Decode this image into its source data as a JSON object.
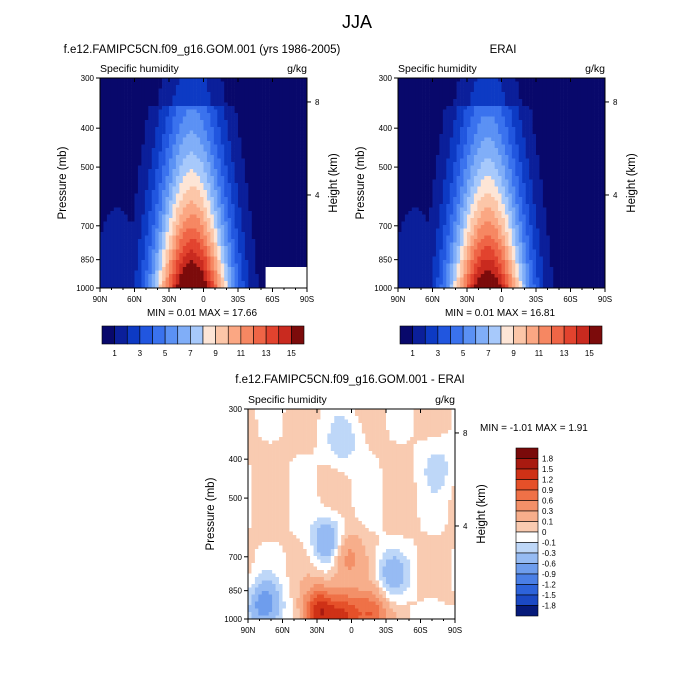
{
  "page_title": "JJA",
  "colors": {
    "blues": [
      "#08086b",
      "#0b1f9a",
      "#0d3ac4",
      "#2156df",
      "#3a72ee",
      "#5b91f4",
      "#80aef8",
      "#a7c9fb",
      "#cfe2fd"
    ],
    "reds": [
      "#fde5d6",
      "#fcc6a8",
      "#fba783",
      "#f68762",
      "#ef6546",
      "#e2432e",
      "#c92a1f",
      "#a61614",
      "#7c0b0b"
    ],
    "diff_neg": [
      "#e0eefd",
      "#bed7f8",
      "#96bbf3",
      "#6e9ded",
      "#4a7fe6",
      "#2d63da",
      "#1b49c4",
      "#0e2ea3",
      "#061a7a"
    ],
    "diff_pos": [
      "#fbe6d8",
      "#f9cbb1",
      "#f7ae8b",
      "#f39068",
      "#ef7147",
      "#e55029",
      "#cf3116",
      "#a81a10",
      "#7a0a0a"
    ],
    "missing": "#ffffff"
  },
  "chart_data": [
    {
      "id": "model",
      "type": "heatmap",
      "title": "f.e12.FAMIPC5CN.f09_g16.GOM.001 (yrs 1986-2005)",
      "left_label": "Specific humidity",
      "right_label": "g/kg",
      "xlabel": "",
      "ylabel": "Pressure (mb)",
      "ylabel_right": "Height (km)",
      "x_ticks": [
        "90N",
        "60N",
        "30N",
        "0",
        "30S",
        "60S",
        "90S"
      ],
      "x_tick_values": [
        90,
        60,
        30,
        0,
        -30,
        -60,
        -90
      ],
      "y_ticks": [
        "300",
        "400",
        "500",
        "700",
        "850",
        "1000"
      ],
      "y_tick_values": [
        300,
        400,
        500,
        700,
        850,
        1000
      ],
      "y_right_ticks": [
        "8",
        "4"
      ],
      "y_right_tick_values": [
        8,
        4
      ],
      "xlim": [
        90,
        -90
      ],
      "ylim": [
        1000,
        300
      ],
      "y_scale": "log",
      "min_label": "MIN =  0.01  MAX =  17.66",
      "min": 0.01,
      "max": 17.66,
      "surface_peak_lat": 10,
      "surface_peak_value": 17.66,
      "missing_region": {
        "lat": [
          -55,
          -90
        ],
        "pressure": [
          880,
          1000
        ]
      },
      "colorbar": {
        "levels": [
          1,
          2,
          3,
          4,
          5,
          6,
          7,
          8,
          9,
          10,
          11,
          12,
          13,
          14,
          15
        ],
        "labels": [
          "1",
          "3",
          "5",
          "7",
          "9",
          "11",
          "13",
          "15"
        ]
      }
    },
    {
      "id": "obs",
      "type": "heatmap",
      "title": "ERAI",
      "left_label": "Specific humidity",
      "right_label": "g/kg",
      "xlabel": "",
      "ylabel": "Pressure (mb)",
      "ylabel_right": "Height (km)",
      "x_ticks": [
        "90N",
        "60N",
        "30N",
        "0",
        "30S",
        "60S",
        "90S"
      ],
      "x_tick_values": [
        90,
        60,
        30,
        0,
        -30,
        -60,
        -90
      ],
      "y_ticks": [
        "300",
        "400",
        "500",
        "700",
        "850",
        "1000"
      ],
      "y_tick_values": [
        300,
        400,
        500,
        700,
        850,
        1000
      ],
      "y_right_ticks": [
        "8",
        "4"
      ],
      "y_right_tick_values": [
        8,
        4
      ],
      "xlim": [
        90,
        -90
      ],
      "ylim": [
        1000,
        300
      ],
      "y_scale": "log",
      "min_label": "MIN =  0.01  MAX =  16.81",
      "min": 0.01,
      "max": 16.81,
      "surface_peak_lat": 12,
      "surface_peak_value": 16.81,
      "colorbar": {
        "levels": [
          1,
          2,
          3,
          4,
          5,
          6,
          7,
          8,
          9,
          10,
          11,
          12,
          13,
          14,
          15
        ],
        "labels": [
          "1",
          "3",
          "5",
          "7",
          "9",
          "11",
          "13",
          "15"
        ]
      }
    },
    {
      "id": "diff",
      "type": "heatmap",
      "title": "f.e12.FAMIPC5CN.f09_g16.GOM.001 - ERAI",
      "left_label": "Specific humidity",
      "right_label": "g/kg",
      "xlabel": "",
      "ylabel": "Pressure (mb)",
      "ylabel_right": "Height (km)",
      "x_ticks": [
        "90N",
        "60N",
        "30N",
        "0",
        "30S",
        "60S",
        "90S"
      ],
      "x_tick_values": [
        90,
        60,
        30,
        0,
        -30,
        -60,
        -90
      ],
      "y_ticks": [
        "300",
        "400",
        "500",
        "700",
        "850",
        "1000"
      ],
      "y_tick_values": [
        300,
        400,
        500,
        700,
        850,
        1000
      ],
      "y_right_ticks": [
        "8",
        "4"
      ],
      "y_right_tick_values": [
        8,
        4
      ],
      "xlim": [
        90,
        -90
      ],
      "ylim": [
        1000,
        300
      ],
      "y_scale": "log",
      "min_label": "MIN = -1.01  MAX =   1.91",
      "min": -1.01,
      "max": 1.91,
      "missing_region": {
        "lat": [
          -50,
          -90
        ],
        "pressure": [
          925,
          1000
        ]
      },
      "features": [
        {
          "lat": 28,
          "p": 960,
          "value": 1.6
        },
        {
          "lat": 5,
          "p": 980,
          "value": 1.2
        },
        {
          "lat": -18,
          "p": 975,
          "value": 1.1
        },
        {
          "lat": 5,
          "p": 700,
          "value": 0.7
        },
        {
          "lat": 20,
          "p": 640,
          "value": -0.8
        },
        {
          "lat": 75,
          "p": 930,
          "value": -1.0
        },
        {
          "lat": -35,
          "p": 780,
          "value": -0.6
        },
        {
          "lat": -75,
          "p": 420,
          "value": -0.3
        },
        {
          "lat": 8,
          "p": 360,
          "value": -0.4
        }
      ],
      "colorbar": {
        "levels": [
          1.8,
          1.5,
          1.2,
          0.9,
          0.6,
          0.3,
          0.1,
          0,
          -0.1,
          -0.3,
          -0.6,
          -0.9,
          -1.2,
          -1.5,
          -1.8
        ],
        "labels": [
          "1.8",
          "1.5",
          "1.2",
          "0.9",
          "0.6",
          "0.3",
          "0.1",
          "0",
          "-0.1",
          "-0.3",
          "-0.6",
          "-0.9",
          "-1.2",
          "-1.5",
          "-1.8"
        ]
      }
    }
  ]
}
